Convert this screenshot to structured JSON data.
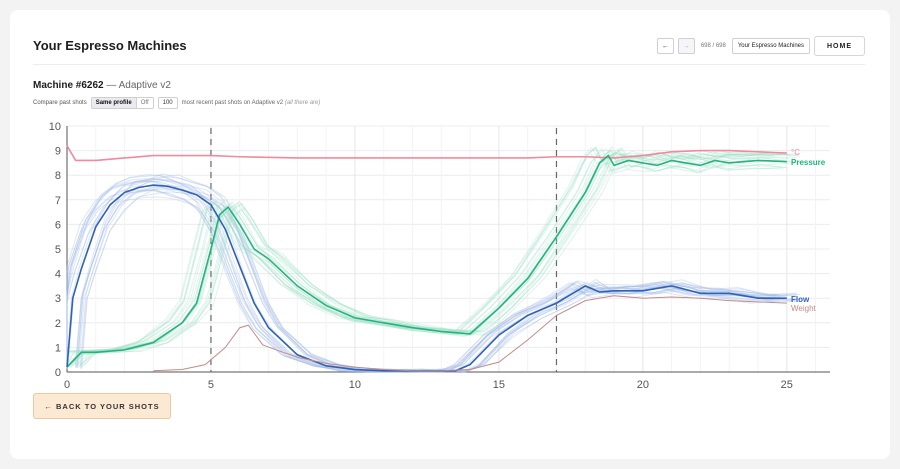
{
  "header": {
    "title": "Your Espresso Machines",
    "nav_prev": "←",
    "nav_next": "→",
    "nav_count": "698 / 698",
    "nav_select": "Your Espresso Machines",
    "home": "HOME"
  },
  "machine": {
    "name": "Machine #6262",
    "separator": " — ",
    "profile": "Adaptive v2"
  },
  "compare": {
    "label": "Compare past shots",
    "option_on": "Same profile",
    "option_off": "Off",
    "count": "100",
    "note": "most recent past shots on Adaptive v2",
    "note_extra": "(all there are)"
  },
  "back_button": "← BACK TO YOUR SHOTS",
  "colors": {
    "temperature": "#f08a9c",
    "pressure": "#22b37e",
    "flow": "#2f62b5",
    "weight": "#c48a8a",
    "history_flow": "#9fb6e6",
    "history_pressure": "#9fe0c6"
  },
  "chart_data": {
    "type": "line",
    "xlim": [
      0,
      26.5
    ],
    "ylim": [
      0,
      10
    ],
    "xticks": [
      "0",
      "5",
      "10",
      "15",
      "20",
      "25"
    ],
    "yticks": [
      "0",
      "1",
      "2",
      "3",
      "4",
      "5",
      "6",
      "7",
      "8",
      "9",
      "10"
    ],
    "phase_markers": [
      0,
      5,
      17
    ],
    "grid": true,
    "series": [
      {
        "name": "°C",
        "key": "temperature",
        "x": [
          0,
          0.3,
          1,
          2,
          3,
          4,
          5,
          6,
          8,
          10,
          12,
          14,
          16,
          17,
          18,
          19,
          20,
          21,
          22,
          23,
          24,
          25
        ],
        "y": [
          9.2,
          8.6,
          8.6,
          8.7,
          8.8,
          8.8,
          8.8,
          8.75,
          8.7,
          8.7,
          8.7,
          8.7,
          8.7,
          8.75,
          8.75,
          8.7,
          8.8,
          8.95,
          9.0,
          9.0,
          8.95,
          8.9
        ]
      },
      {
        "name": "Pressure",
        "key": "pressure",
        "x": [
          0,
          0.5,
          1,
          2,
          3,
          4,
          4.5,
          5,
          5.3,
          5.6,
          6,
          6.5,
          7,
          8,
          9,
          10,
          11,
          12,
          13,
          14,
          15,
          16,
          17,
          18,
          18.5,
          18.8,
          19,
          19.5,
          20,
          20.5,
          21,
          21.5,
          22,
          22.5,
          23,
          24,
          25
        ],
        "y": [
          0.2,
          0.8,
          0.8,
          0.9,
          1.2,
          2.0,
          2.8,
          5.0,
          6.4,
          6.7,
          6.0,
          5.0,
          4.6,
          3.5,
          2.7,
          2.2,
          2.0,
          1.8,
          1.65,
          1.55,
          2.6,
          3.8,
          5.5,
          7.3,
          8.5,
          8.8,
          8.4,
          8.6,
          8.5,
          8.4,
          8.6,
          8.5,
          8.4,
          8.6,
          8.5,
          8.6,
          8.55
        ]
      },
      {
        "name": "Flow",
        "key": "flow",
        "x": [
          0,
          0.2,
          0.5,
          1,
          1.5,
          2,
          2.5,
          3,
          3.5,
          4,
          4.5,
          5,
          5.5,
          6,
          6.5,
          7,
          8,
          9,
          10,
          11,
          12,
          13,
          13.5,
          14,
          15,
          16,
          17,
          18,
          18.5,
          19,
          20,
          21,
          22,
          23,
          24,
          25
        ],
        "y": [
          0.2,
          3.0,
          4.2,
          5.9,
          6.8,
          7.3,
          7.5,
          7.6,
          7.55,
          7.4,
          7.2,
          6.8,
          5.8,
          4.3,
          2.8,
          1.8,
          0.7,
          0.25,
          0.1,
          0.05,
          0.05,
          0.05,
          0.05,
          0.3,
          1.5,
          2.3,
          2.8,
          3.5,
          3.25,
          3.3,
          3.3,
          3.5,
          3.2,
          3.2,
          3.0,
          3.0
        ]
      },
      {
        "name": "Weight",
        "key": "weight",
        "x": [
          3,
          4,
          4.8,
          5.5,
          6,
          6.3,
          6.8,
          7.5,
          8,
          9,
          10,
          11,
          12,
          13,
          14,
          15,
          16,
          17,
          18,
          19,
          20,
          21,
          22,
          23,
          24,
          25
        ],
        "y": [
          0.05,
          0.1,
          0.3,
          1.0,
          1.8,
          1.9,
          1.1,
          0.8,
          0.6,
          0.35,
          0.2,
          0.1,
          0.05,
          0.05,
          0.1,
          0.4,
          1.3,
          2.3,
          2.9,
          3.1,
          3.0,
          3.05,
          3.0,
          2.9,
          2.85,
          2.8
        ]
      }
    ]
  }
}
